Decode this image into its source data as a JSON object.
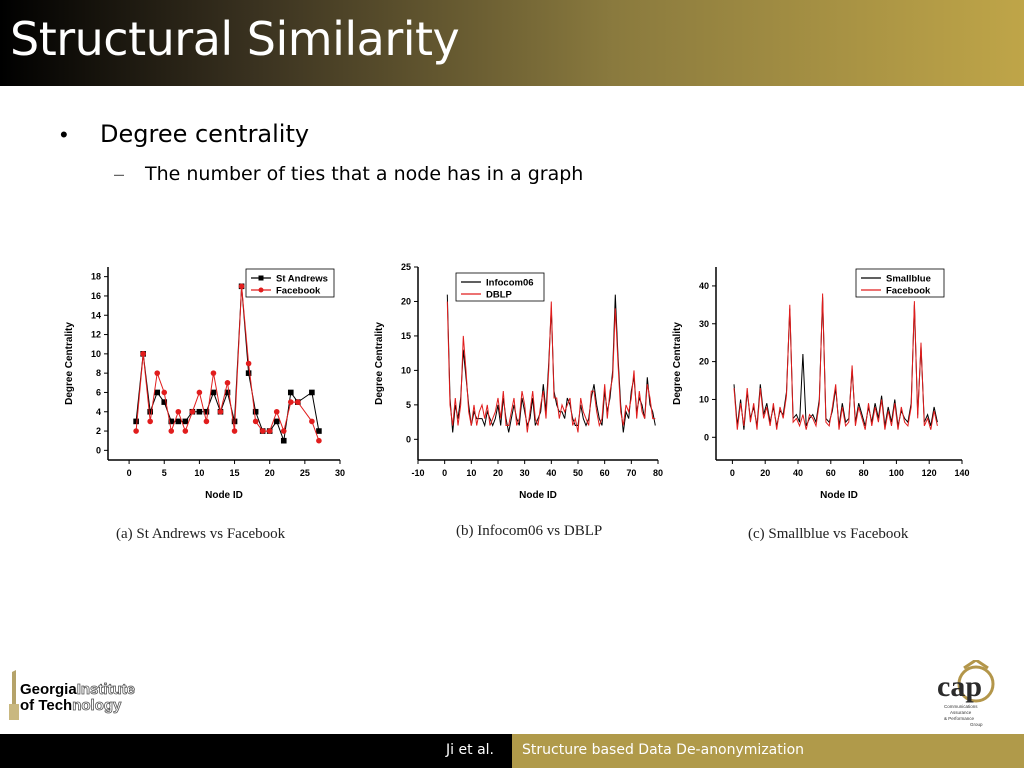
{
  "slide": {
    "title": "Structural Similarity",
    "bullet": "Degree centrality",
    "bullet_marker": "•",
    "sub_bullet": "The number of ties that a node has in a graph",
    "sub_marker": "–"
  },
  "footer": {
    "author": "Ji et al.",
    "talk_title": "Structure based Data De-anonymization"
  },
  "logos": {
    "gt_line1_bold": "Georgia",
    "gt_line1_outline": "Institute",
    "gt_line2_bold": "of Tech",
    "gt_line2_outline": "nology",
    "cap_text": "cap",
    "cap_sub": [
      "Communications",
      "Assurance",
      "& Performance",
      "Group"
    ]
  },
  "colors": {
    "series_a": "#000000",
    "series_b": "#e11d1d",
    "footer_gold": "#b09a4a"
  },
  "chart_data": [
    {
      "type": "line",
      "caption": "(a)  St Andrews vs Facebook",
      "xlabel": "Node ID",
      "ylabel": "Degree Centrality",
      "xlim": [
        -3,
        30
      ],
      "ylim": [
        -1,
        19
      ],
      "xticks": [
        0,
        5,
        10,
        15,
        20,
        25,
        30
      ],
      "yticks": [
        0,
        2,
        4,
        6,
        8,
        10,
        12,
        14,
        16,
        18
      ],
      "legend_position": "top-right",
      "markers": true,
      "series": [
        {
          "name": "St Andrews",
          "x": [
            1,
            2,
            3,
            4,
            5,
            6,
            7,
            8,
            9,
            10,
            11,
            12,
            13,
            14,
            15,
            16,
            17,
            18,
            19,
            20,
            21,
            22,
            23,
            24,
            26,
            27
          ],
          "values": [
            3,
            10,
            4,
            6,
            5,
            3,
            3,
            3,
            4,
            4,
            4,
            6,
            4,
            6,
            3,
            17,
            8,
            4,
            2,
            2,
            3,
            1,
            6,
            5,
            6,
            2
          ]
        },
        {
          "name": "Facebook",
          "x": [
            1,
            2,
            3,
            4,
            5,
            6,
            7,
            8,
            9,
            10,
            11,
            12,
            13,
            14,
            15,
            16,
            17,
            18,
            19,
            20,
            21,
            22,
            23,
            24,
            26,
            27
          ],
          "values": [
            2,
            10,
            3,
            8,
            6,
            2,
            4,
            2,
            4,
            6,
            3,
            8,
            4,
            7,
            2,
            17,
            9,
            3,
            2,
            2,
            4,
            2,
            5,
            5,
            3,
            1
          ]
        }
      ]
    },
    {
      "type": "line",
      "caption": "(b)  Infocom06 vs DBLP",
      "xlabel": "Node ID",
      "ylabel": "Degree Centrality",
      "xlim": [
        -10,
        80
      ],
      "ylim": [
        -3,
        25
      ],
      "xticks": [
        -10,
        0,
        10,
        20,
        30,
        40,
        50,
        60,
        70,
        80
      ],
      "yticks": [
        0,
        5,
        10,
        15,
        20,
        25
      ],
      "legend_position": "top-left",
      "markers": false,
      "series": [
        {
          "name": "Infocom06",
          "x": [
            1,
            2,
            3,
            4,
            5,
            6,
            7,
            8,
            9,
            10,
            11,
            12,
            13,
            14,
            15,
            16,
            17,
            18,
            19,
            20,
            21,
            22,
            23,
            24,
            25,
            26,
            27,
            28,
            29,
            30,
            31,
            32,
            33,
            34,
            35,
            36,
            37,
            38,
            39,
            40,
            41,
            42,
            43,
            44,
            45,
            46,
            47,
            48,
            49,
            50,
            51,
            52,
            53,
            54,
            55,
            56,
            57,
            58,
            59,
            60,
            61,
            62,
            63,
            64,
            65,
            66,
            67,
            68,
            69,
            70,
            71,
            72,
            73,
            74,
            75,
            76,
            77,
            78,
            79
          ],
          "values": [
            21,
            6,
            1,
            5,
            3,
            6,
            13,
            9,
            5,
            2,
            4,
            3,
            3,
            3,
            2,
            4,
            3,
            2,
            3,
            5,
            2,
            6,
            3,
            1,
            3,
            5,
            3,
            2,
            6,
            4,
            2,
            3,
            6,
            2,
            3,
            4,
            8,
            4,
            11,
            19,
            7,
            5,
            4,
            4,
            3,
            6,
            5,
            3,
            2,
            2,
            5,
            3,
            2,
            3,
            6,
            8,
            5,
            3,
            2,
            7,
            4,
            6,
            10,
            21,
            12,
            5,
            1,
            4,
            3,
            7,
            9,
            4,
            6,
            5,
            3,
            9,
            5,
            4,
            2
          ]
        },
        {
          "name": "DBLP",
          "x": [
            1,
            2,
            3,
            4,
            5,
            6,
            7,
            8,
            9,
            10,
            11,
            12,
            13,
            14,
            15,
            16,
            17,
            18,
            19,
            20,
            21,
            22,
            23,
            24,
            25,
            26,
            27,
            28,
            29,
            30,
            31,
            32,
            33,
            34,
            35,
            36,
            37,
            38,
            39,
            40,
            41,
            42,
            43,
            44,
            45,
            46,
            47,
            48,
            49,
            50,
            51,
            52,
            53,
            54,
            55,
            56,
            57,
            58,
            59,
            60,
            61,
            62,
            63,
            64,
            65,
            66,
            67,
            68,
            69,
            70,
            71,
            72,
            73,
            74,
            75,
            76,
            77,
            78,
            79
          ],
          "values": [
            20,
            5,
            2,
            6,
            2,
            5,
            15,
            10,
            4,
            2,
            5,
            2,
            4,
            5,
            3,
            5,
            2,
            3,
            4,
            6,
            3,
            7,
            2,
            2,
            4,
            6,
            2,
            3,
            7,
            5,
            1,
            4,
            7,
            3,
            2,
            5,
            7,
            3,
            10,
            20,
            6,
            6,
            3,
            5,
            4,
            5,
            6,
            2,
            3,
            1,
            6,
            4,
            3,
            2,
            7,
            7,
            4,
            2,
            3,
            8,
            3,
            7,
            9,
            19,
            11,
            4,
            2,
            5,
            4,
            6,
            10,
            3,
            7,
            4,
            3,
            8,
            6,
            3,
            3
          ]
        }
      ]
    },
    {
      "type": "line",
      "caption": "(c)  Smallblue vs Facebook",
      "xlabel": "Node ID",
      "ylabel": "Degree Centrality",
      "xlim": [
        -10,
        140
      ],
      "ylim": [
        -6,
        45
      ],
      "xticks": [
        0,
        20,
        40,
        60,
        80,
        100,
        120,
        140
      ],
      "yticks": [
        0,
        10,
        20,
        30,
        40
      ],
      "legend_position": "top-right",
      "markers": false,
      "series": [
        {
          "name": "Smallblue",
          "x": [
            1,
            3,
            5,
            7,
            9,
            11,
            13,
            15,
            17,
            19,
            21,
            23,
            25,
            27,
            29,
            31,
            33,
            35,
            37,
            39,
            41,
            43,
            45,
            47,
            49,
            51,
            53,
            55,
            57,
            59,
            61,
            63,
            65,
            67,
            69,
            71,
            73,
            75,
            77,
            79,
            81,
            83,
            85,
            87,
            89,
            91,
            93,
            95,
            97,
            99,
            101,
            103,
            105,
            107,
            109,
            111,
            113,
            115,
            117,
            119,
            121,
            123,
            125
          ],
          "values": [
            14,
            3,
            10,
            2,
            12,
            5,
            8,
            3,
            14,
            6,
            9,
            4,
            8,
            3,
            7,
            6,
            12,
            34,
            5,
            6,
            4,
            22,
            3,
            5,
            6,
            4,
            10,
            37,
            5,
            4,
            7,
            13,
            3,
            9,
            4,
            5,
            18,
            4,
            9,
            6,
            3,
            8,
            4,
            9,
            5,
            11,
            3,
            8,
            4,
            10,
            3,
            7,
            5,
            4,
            9,
            35,
            6,
            24,
            4,
            6,
            3,
            8,
            4
          ]
        },
        {
          "name": "Facebook",
          "x": [
            1,
            3,
            5,
            7,
            9,
            11,
            13,
            15,
            17,
            19,
            21,
            23,
            25,
            27,
            29,
            31,
            33,
            35,
            37,
            39,
            41,
            43,
            45,
            47,
            49,
            51,
            53,
            55,
            57,
            59,
            61,
            63,
            65,
            67,
            69,
            71,
            73,
            75,
            77,
            79,
            81,
            83,
            85,
            87,
            89,
            91,
            93,
            95,
            97,
            99,
            101,
            103,
            105,
            107,
            109,
            111,
            113,
            115,
            117,
            119,
            121,
            123,
            125
          ],
          "values": [
            13,
            2,
            9,
            3,
            13,
            4,
            9,
            2,
            13,
            5,
            8,
            3,
            9,
            2,
            8,
            5,
            11,
            35,
            4,
            5,
            3,
            6,
            2,
            6,
            5,
            3,
            9,
            38,
            4,
            3,
            8,
            14,
            2,
            8,
            3,
            4,
            19,
            3,
            8,
            5,
            2,
            9,
            3,
            8,
            4,
            10,
            2,
            7,
            3,
            9,
            2,
            8,
            4,
            3,
            8,
            36,
            5,
            25,
            3,
            5,
            2,
            7,
            3
          ]
        }
      ]
    }
  ]
}
